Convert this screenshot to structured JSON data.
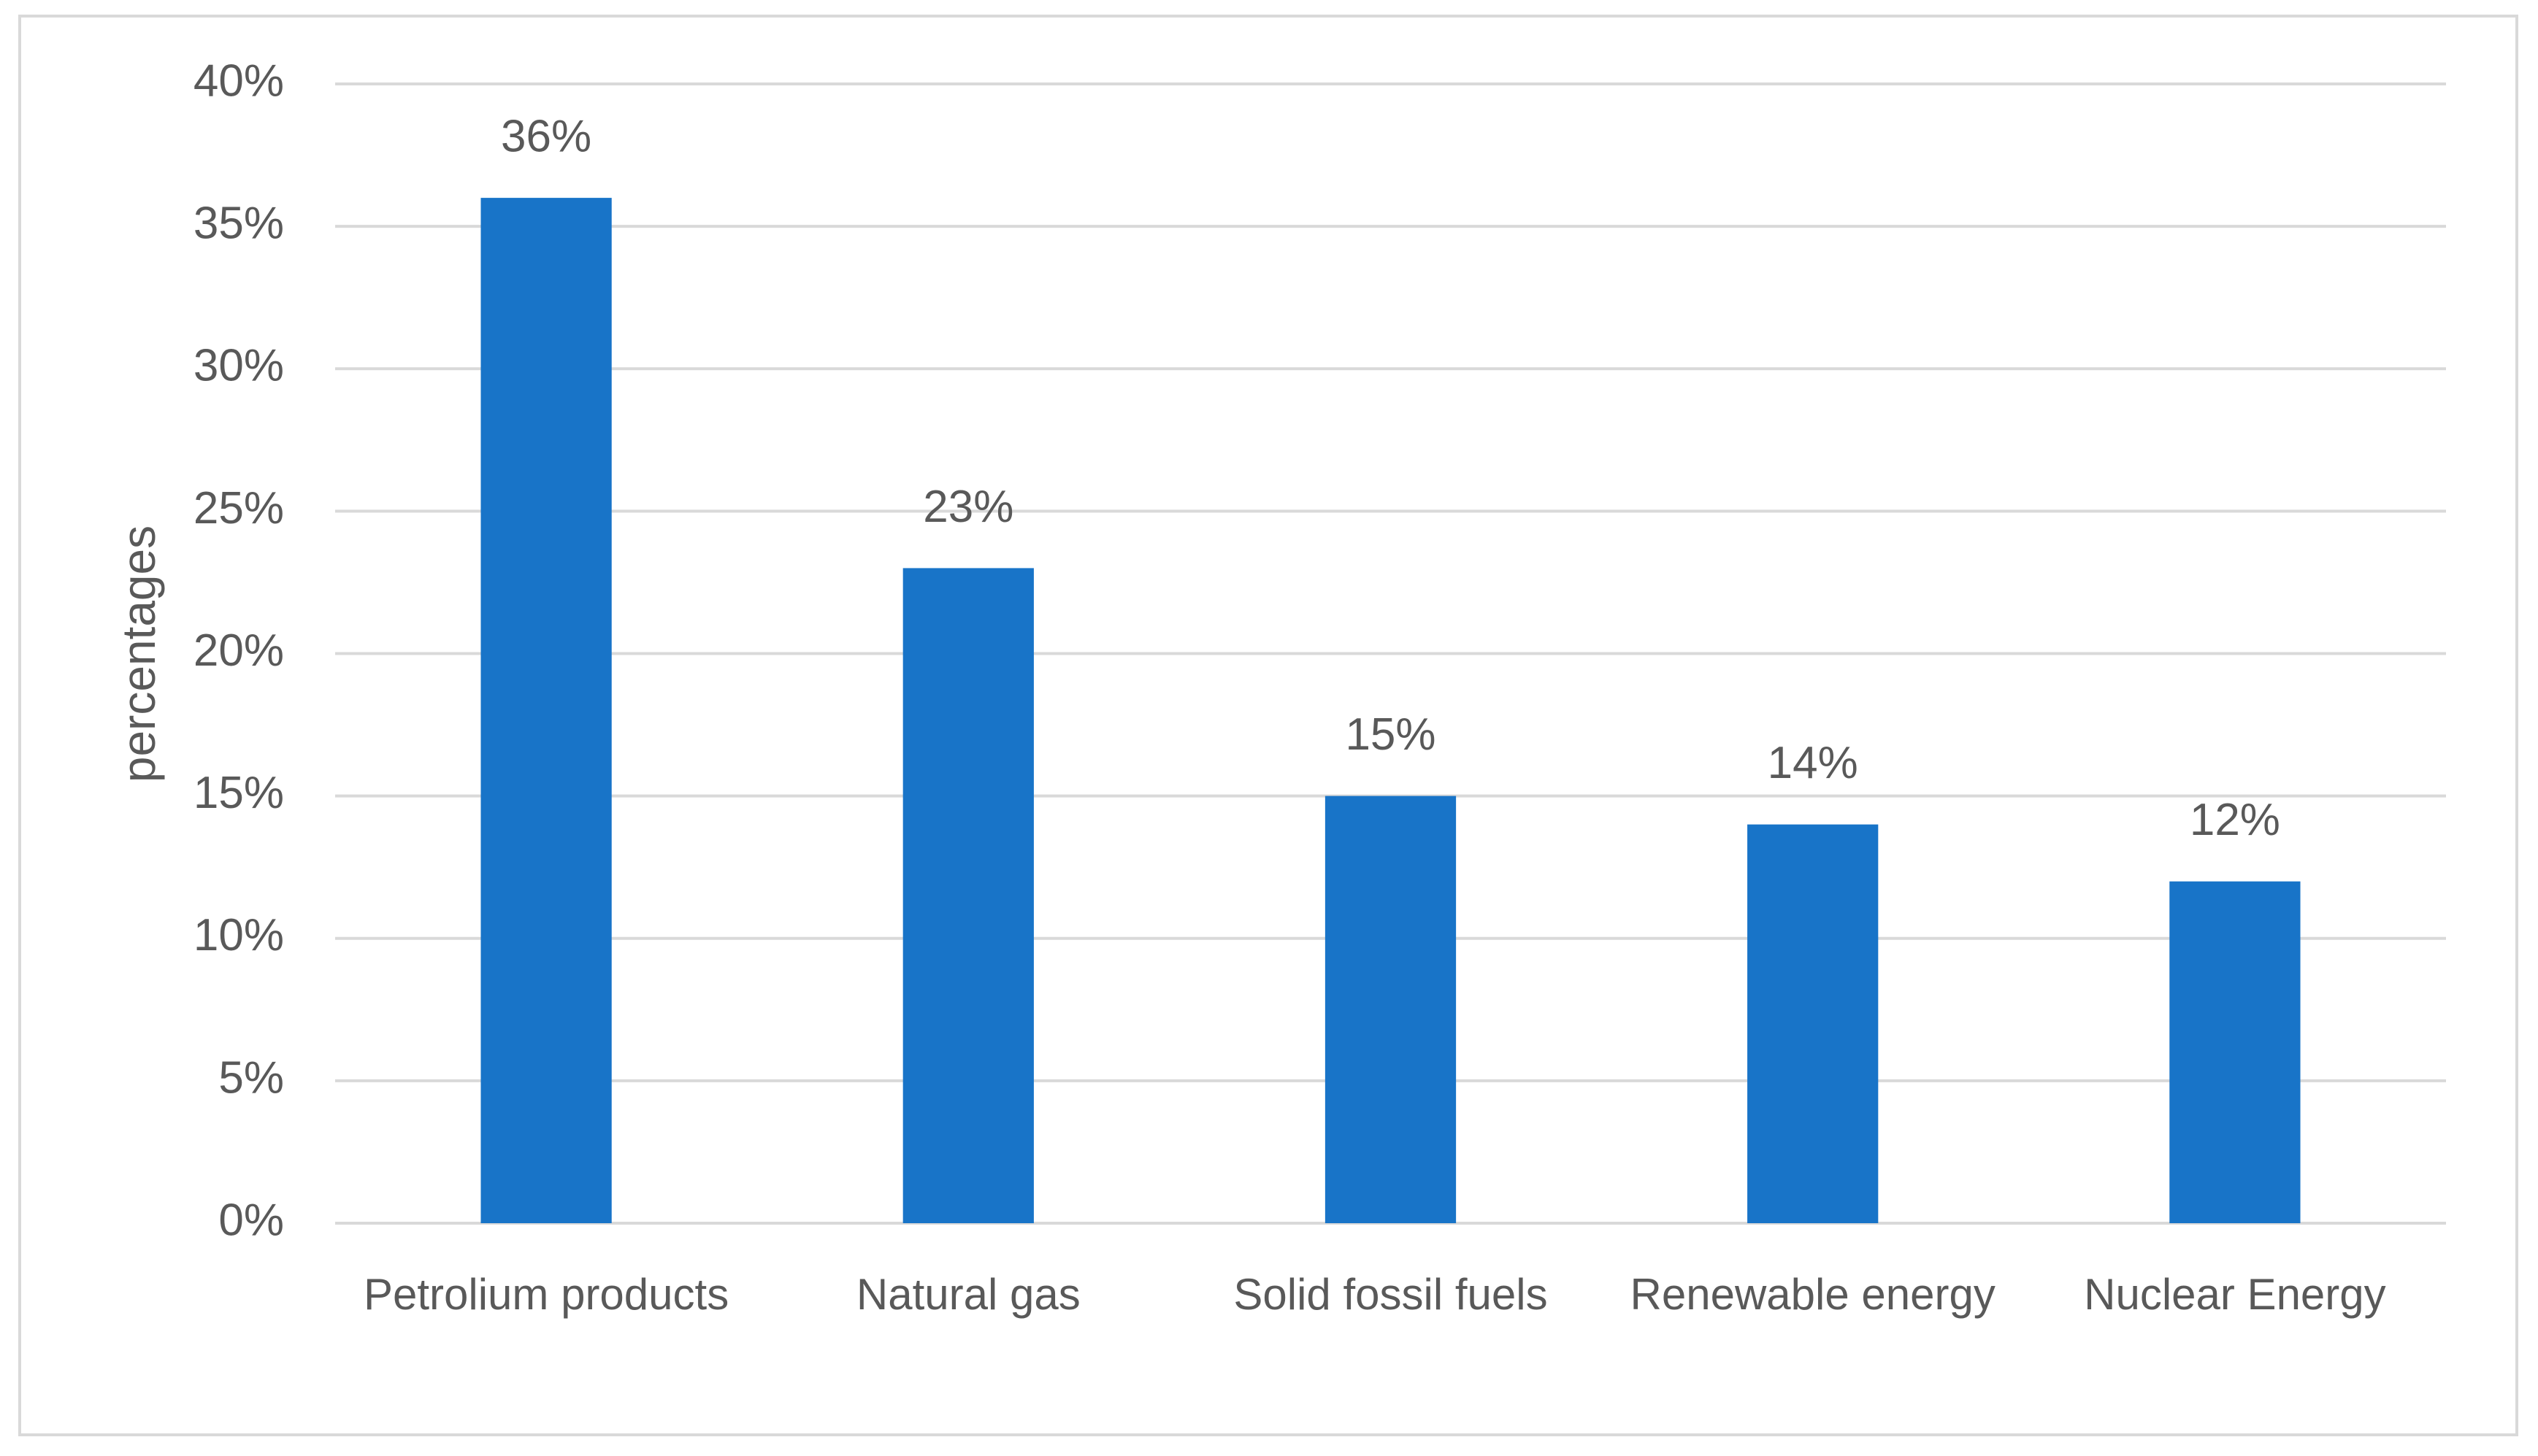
{
  "chart_data": {
    "type": "bar",
    "y_label": "percentages",
    "categories": [
      "Petrolium products",
      "Natural gas",
      "Solid fossil fuels",
      "Renewable energy",
      "Nuclear Energy"
    ],
    "values": [
      36,
      23,
      15,
      14,
      12
    ],
    "value_labels": [
      "36%",
      "23%",
      "15%",
      "14%",
      "12%"
    ],
    "color": "#1874c8",
    "ylim": [
      0,
      40
    ],
    "yticks": [
      {
        "value": 0,
        "label": "0%"
      },
      {
        "value": 5,
        "label": "5%"
      },
      {
        "value": 10,
        "label": "10%"
      },
      {
        "value": 15,
        "label": "15%"
      },
      {
        "value": 20,
        "label": "20%"
      },
      {
        "value": 25,
        "label": "25%"
      },
      {
        "value": 30,
        "label": "30%"
      },
      {
        "value": 35,
        "label": "35%"
      },
      {
        "value": 40,
        "label": "40%"
      }
    ],
    "grid": true
  }
}
